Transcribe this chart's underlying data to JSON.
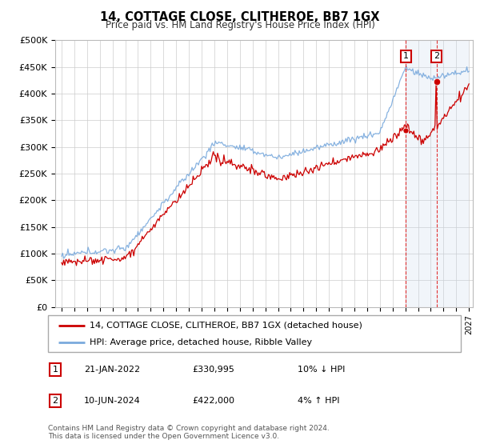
{
  "title": "14, COTTAGE CLOSE, CLITHEROE, BB7 1GX",
  "subtitle": "Price paid vs. HM Land Registry's House Price Index (HPI)",
  "legend_line1": "14, COTTAGE CLOSE, CLITHEROE, BB7 1GX (detached house)",
  "legend_line2": "HPI: Average price, detached house, Ribble Valley",
  "transaction1_date": "21-JAN-2022",
  "transaction1_price": "£330,995",
  "transaction1_hpi": "10% ↓ HPI",
  "transaction2_date": "10-JUN-2024",
  "transaction2_price": "£422,000",
  "transaction2_hpi": "4% ↑ HPI",
  "footer": "Contains HM Land Registry data © Crown copyright and database right 2024.\nThis data is licensed under the Open Government Licence v3.0.",
  "yticks": [
    0,
    50000,
    100000,
    150000,
    200000,
    250000,
    300000,
    350000,
    400000,
    450000,
    500000
  ],
  "line_color_red": "#cc0000",
  "line_color_blue": "#7aaadd",
  "vline_color": "#dd0000",
  "shade_color": "#c8d8ee",
  "grid_color": "#cccccc",
  "t1_year": 2022.05,
  "t2_year": 2024.45,
  "t1_price": 330995,
  "t2_price": 422000
}
